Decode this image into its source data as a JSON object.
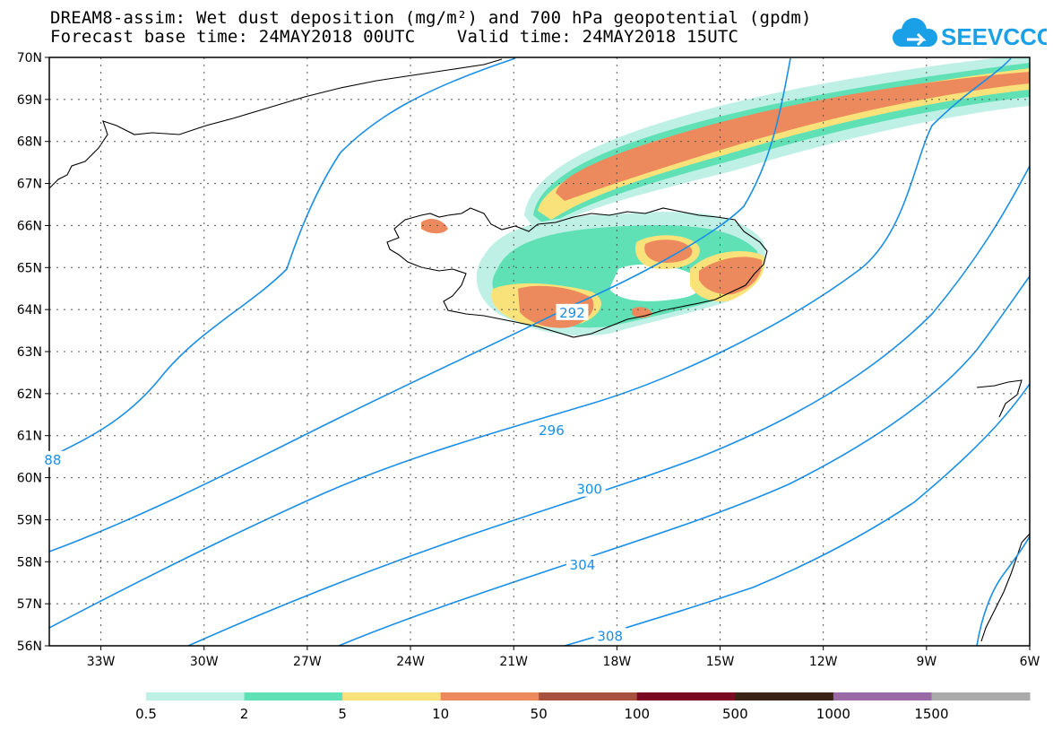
{
  "title": {
    "line1": "DREAM8-assim: Wet dust deposition (mg/m²) and 700 hPa geopotential (gpdm)",
    "line2": "Forecast base time: 24MAY2018 00UTC    Valid time: 24MAY2018 15UTC"
  },
  "logo": {
    "text": "SEEVCCC",
    "icon": "cloud-icon",
    "color": "#1aa0e6"
  },
  "map": {
    "lon_range": [
      -34.5,
      -6
    ],
    "lat_range": [
      56,
      70
    ],
    "lon_ticks": [
      {
        "value": -33,
        "label": "33W"
      },
      {
        "value": -30,
        "label": "30W"
      },
      {
        "value": -27,
        "label": "27W"
      },
      {
        "value": -24,
        "label": "24W"
      },
      {
        "value": -21,
        "label": "21W"
      },
      {
        "value": -18,
        "label": "18W"
      },
      {
        "value": -15,
        "label": "15W"
      },
      {
        "value": -12,
        "label": "12W"
      },
      {
        "value": -9,
        "label": "9W"
      },
      {
        "value": -6,
        "label": "6W"
      }
    ],
    "lat_ticks": [
      {
        "value": 70,
        "label": "70N"
      },
      {
        "value": 69,
        "label": "69N"
      },
      {
        "value": 68,
        "label": "68N"
      },
      {
        "value": 67,
        "label": "67N"
      },
      {
        "value": 66,
        "label": "66N"
      },
      {
        "value": 65,
        "label": "65N"
      },
      {
        "value": 64,
        "label": "64N"
      },
      {
        "value": 63,
        "label": "63N"
      },
      {
        "value": 62,
        "label": "62N"
      },
      {
        "value": 61,
        "label": "61N"
      },
      {
        "value": 60,
        "label": "60N"
      },
      {
        "value": 59,
        "label": "59N"
      },
      {
        "value": 58,
        "label": "58N"
      },
      {
        "value": 57,
        "label": "57N"
      },
      {
        "value": 56,
        "label": "56N"
      }
    ],
    "contour_color": "#1a8fe6",
    "contour_labels": [
      {
        "text": "292",
        "lon": -19.3,
        "lat": 63.9
      },
      {
        "text": "296",
        "lon": -19.9,
        "lat": 61.1
      },
      {
        "text": "300",
        "lon": -18.8,
        "lat": 59.7
      },
      {
        "text": "304",
        "lon": -19.0,
        "lat": 57.9
      },
      {
        "text": "308",
        "lon": -18.2,
        "lat": 56.2
      },
      {
        "text": "88",
        "lon": -34.4,
        "lat": 60.4
      }
    ]
  },
  "colorbar": {
    "colors": [
      "#bff0e6",
      "#5fe0b5",
      "#fae27a",
      "#ec8a5e",
      "#a8503e",
      "#7a0a22",
      "#3a2418",
      "#9a6aa6",
      "#aaaaaa"
    ],
    "labels": [
      "0.5",
      "2",
      "5",
      "10",
      "50",
      "100",
      "500",
      "1000",
      "1500"
    ]
  }
}
